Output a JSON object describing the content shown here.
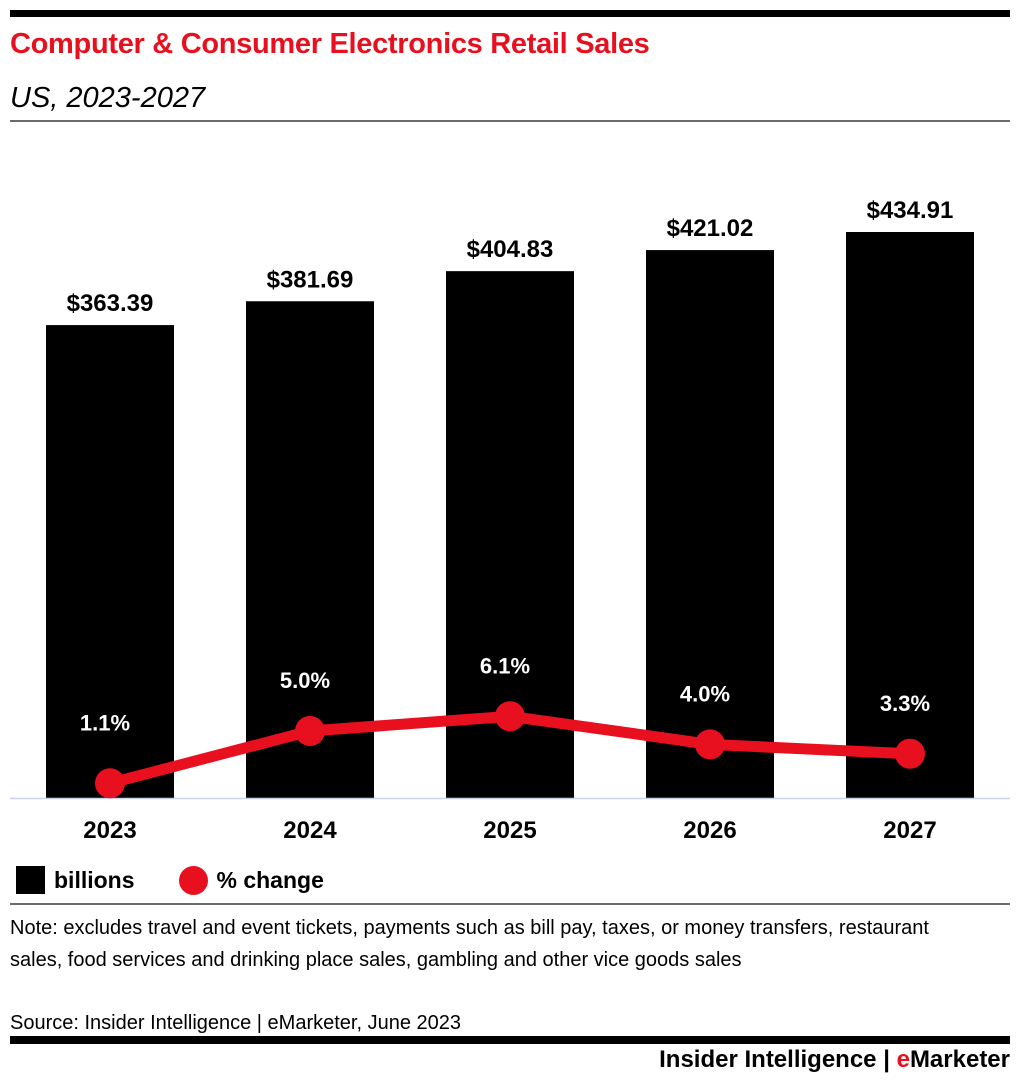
{
  "header": {
    "title": "Computer & Consumer Electronics Retail Sales",
    "subtitle": "US, 2023-2027"
  },
  "chart_data": {
    "type": "bar",
    "title": "Computer & Consumer Electronics Retail Sales",
    "subtitle": "US, 2023-2027",
    "categories": [
      "2023",
      "2024",
      "2025",
      "2026",
      "2027"
    ],
    "series": [
      {
        "name": "billions",
        "type": "bar",
        "values": [
          363.39,
          381.69,
          404.83,
          421.02,
          434.91
        ],
        "labels": [
          "$363.39",
          "$381.69",
          "$404.83",
          "$421.02",
          "$434.91"
        ],
        "color": "#000000"
      },
      {
        "name": "% change",
        "type": "line",
        "values": [
          1.1,
          5.0,
          6.1,
          4.0,
          3.3
        ],
        "labels": [
          "1.1%",
          "5.0%",
          "6.1%",
          "4.0%",
          "3.3%"
        ],
        "color": "#e8101e"
      }
    ],
    "xlabel": "",
    "ylabel": "",
    "grid": false,
    "legend": "bottom-left"
  },
  "legend": {
    "items": [
      {
        "label": "billions"
      },
      {
        "label": "% change"
      }
    ]
  },
  "footer": {
    "note": "Note: excludes travel and event tickets, payments such as bill pay, taxes, or money transfers, restaurant sales, food services and drinking place sales, gambling and other vice goods sales",
    "source": "Source: Insider Intelligence | eMarketer, June 2023",
    "brand_left": "Insider Intelligence | ",
    "brand_e": "e",
    "brand_right": "Marketer"
  }
}
